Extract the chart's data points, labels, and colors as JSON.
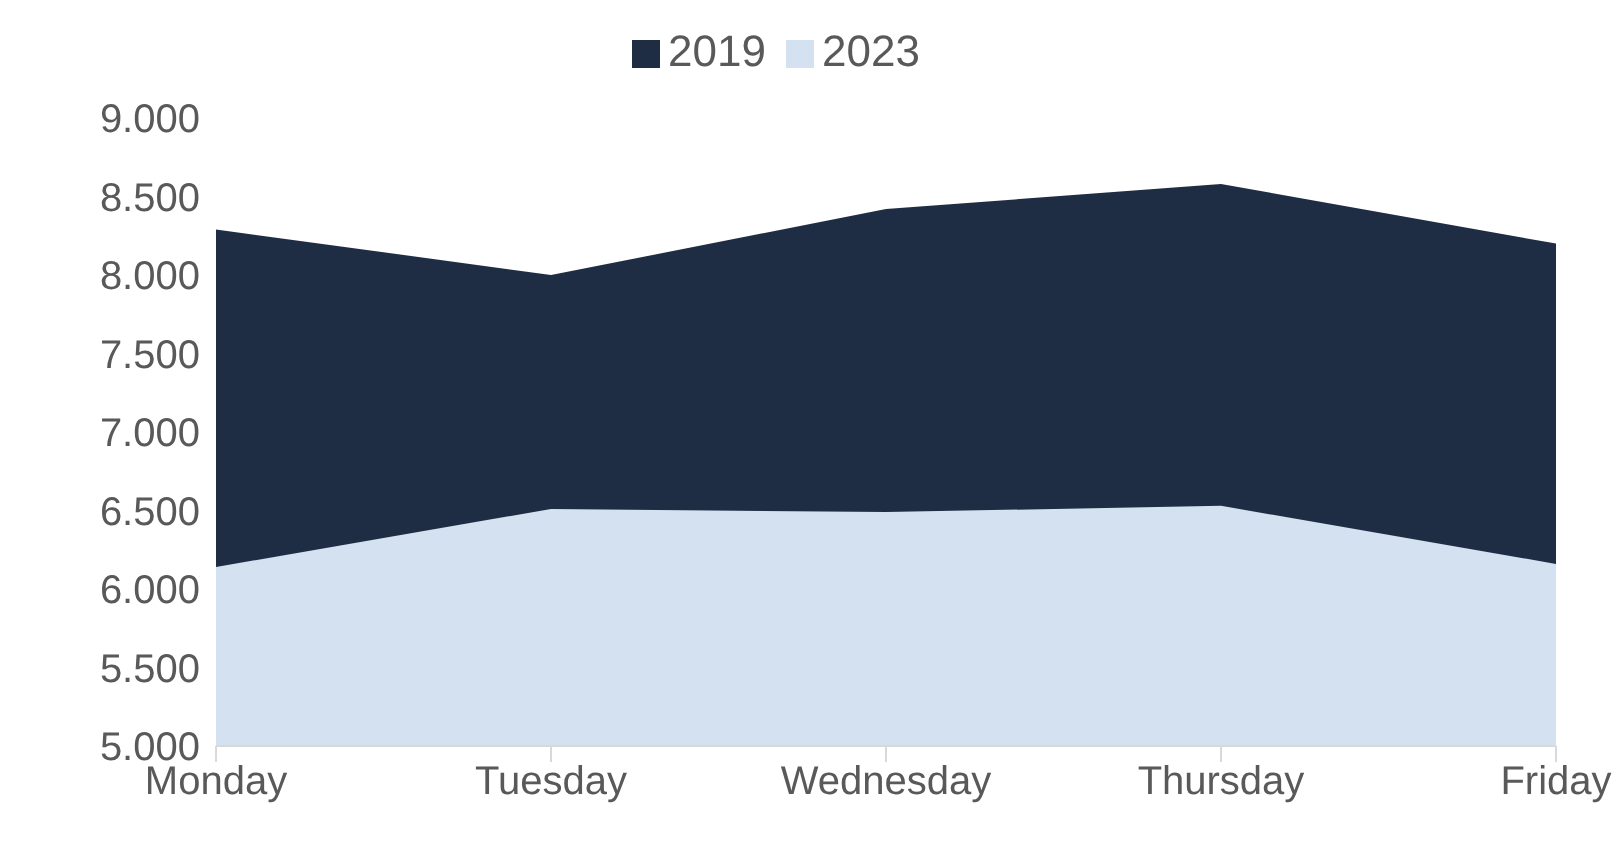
{
  "chart_data": {
    "type": "area",
    "categories": [
      "Monday",
      "Tuesday",
      "Wednesday",
      "Thursday",
      "Friday"
    ],
    "series": [
      {
        "name": "2019",
        "color": "#1f2d44",
        "values": [
          8290,
          8000,
          8420,
          8580,
          8200
        ]
      },
      {
        "name": "2023",
        "color": "#d3e1f1",
        "values": [
          6140,
          6510,
          6490,
          6530,
          6160
        ]
      }
    ],
    "ylim": [
      5000,
      9000
    ],
    "yticks": [
      {
        "value": 5000,
        "label": "5.000"
      },
      {
        "value": 5500,
        "label": "5.500"
      },
      {
        "value": 6000,
        "label": "6.000"
      },
      {
        "value": 6500,
        "label": "6.500"
      },
      {
        "value": 7000,
        "label": "7.000"
      },
      {
        "value": 7500,
        "label": "7.500"
      },
      {
        "value": 8000,
        "label": "8.000"
      },
      {
        "value": 8500,
        "label": "8.500"
      },
      {
        "value": 9000,
        "label": "9.000"
      }
    ],
    "grid": false,
    "legend": "top"
  }
}
